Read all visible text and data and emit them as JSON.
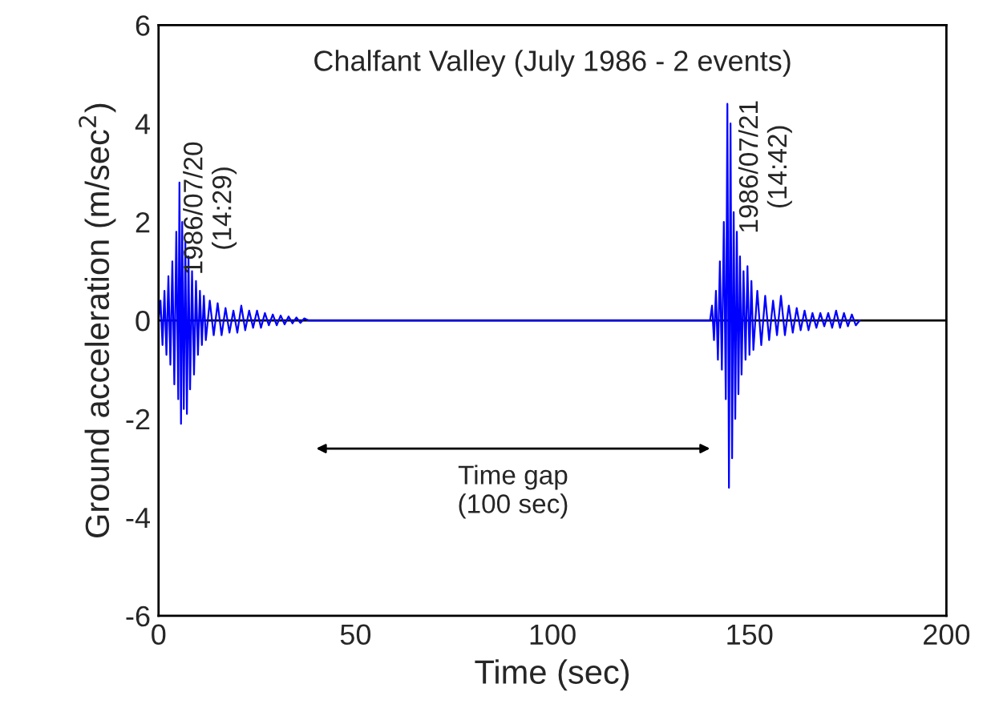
{
  "chart_data": {
    "type": "line",
    "title": "Chalfant Valley (July 1986 - 2 events)",
    "xlabel": "Time (sec)",
    "ylabel": "Ground acceleration (m/sec$^{2}$)",
    "xlim": [
      0,
      200
    ],
    "xticks": [
      0,
      50,
      100,
      150,
      200
    ],
    "ylim": [
      -6,
      6
    ],
    "yticks": [
      -6,
      -4,
      -2,
      0,
      2,
      4,
      6
    ],
    "grid": false,
    "legend": false,
    "ref_lines": [
      {
        "axis": "y",
        "value": 0,
        "color": "#000000",
        "line_style": "solid"
      }
    ],
    "annotations": [
      "1986/07/20\n(14:29)",
      "1986/07/21\n(14:42)",
      "Time gap\n(100 sec)"
    ],
    "series": [
      {
        "color": "#0000ff",
        "x": [
          0,
          0.5,
          1,
          1.5,
          2,
          2.5,
          3,
          3.5,
          4,
          4.5,
          5,
          5.3,
          5.7,
          6,
          6.4,
          6.8,
          7.2,
          7.6,
          8,
          8.5,
          9,
          9.5,
          10,
          10.5,
          11,
          11.5,
          12,
          13,
          14,
          15,
          16,
          17,
          18,
          19,
          20,
          21,
          22,
          23,
          24,
          25,
          26,
          27,
          28,
          29,
          30,
          31,
          32,
          33,
          34,
          35,
          36,
          37,
          38,
          140,
          140.5,
          141,
          141.5,
          142,
          142.5,
          143,
          143.5,
          144,
          144.4,
          144.8,
          145.2,
          145.6,
          146,
          146.4,
          146.8,
          147.2,
          147.6,
          148,
          148.5,
          149,
          149.5,
          150,
          150.5,
          151,
          152,
          153,
          154,
          155,
          156,
          157,
          158,
          159,
          160,
          161,
          162,
          163,
          164,
          165,
          166,
          167,
          168,
          169,
          170,
          171,
          172,
          173,
          174,
          175,
          176,
          177,
          178
        ],
        "values": [
          0,
          0.4,
          -0.5,
          0.6,
          -0.7,
          0.9,
          -0.9,
          1.2,
          -1.3,
          1.8,
          -1.6,
          2.8,
          -2.1,
          2.0,
          -1.8,
          1.6,
          -1.9,
          1.3,
          -1.4,
          1.0,
          -1.1,
          0.8,
          -0.7,
          0.6,
          -0.5,
          0.5,
          -0.4,
          0.4,
          -0.3,
          0.35,
          -0.3,
          0.25,
          -0.25,
          0.2,
          -0.25,
          0.3,
          -0.2,
          0.2,
          -0.15,
          0.2,
          -0.15,
          0.15,
          -0.1,
          0.12,
          -0.1,
          0.1,
          -0.08,
          0.08,
          -0.06,
          0.06,
          -0.05,
          0.04,
          0,
          0,
          0.3,
          -0.4,
          0.6,
          -0.8,
          1.2,
          -1.0,
          2.0,
          -1.6,
          4.4,
          -3.4,
          4.0,
          -2.8,
          2.2,
          -2.0,
          1.8,
          -1.5,
          1.3,
          -1.1,
          1.0,
          -0.8,
          1.1,
          -0.7,
          0.8,
          -0.6,
          0.6,
          -0.5,
          0.5,
          -0.4,
          0.4,
          -0.3,
          0.5,
          -0.3,
          0.3,
          -0.25,
          0.25,
          -0.2,
          0.2,
          -0.2,
          0.15,
          -0.15,
          0.15,
          -0.12,
          0.15,
          -0.15,
          0.2,
          -0.15,
          0.15,
          -0.12,
          0.12,
          -0.1,
          0
        ]
      }
    ]
  }
}
